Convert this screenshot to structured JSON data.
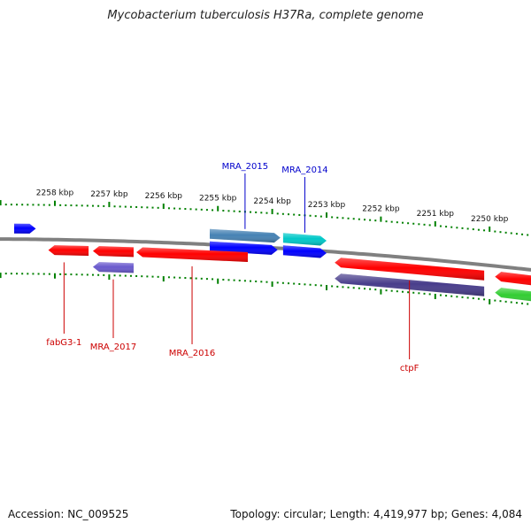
{
  "title": "Mycobacterium tuberculosis H37Ra, complete genome",
  "footer": {
    "accession": "Accession: NC_009525",
    "summary": "Topology: circular; Length: 4,419,977 bp; Genes: 4,084"
  },
  "scale_unit": "kbp",
  "ticks": [
    {
      "kbp": 2258,
      "label": "2258 kbp"
    },
    {
      "kbp": 2257,
      "label": "2257 kbp"
    },
    {
      "kbp": 2256,
      "label": "2256 kbp"
    },
    {
      "kbp": 2255,
      "label": "2255 kbp"
    },
    {
      "kbp": 2254,
      "label": "2254 kbp"
    },
    {
      "kbp": 2253,
      "label": "2253 kbp"
    },
    {
      "kbp": 2252,
      "label": "2252 kbp"
    },
    {
      "kbp": 2251,
      "label": "2251 kbp"
    },
    {
      "kbp": 2250,
      "label": "2250 kbp"
    }
  ],
  "features": [
    {
      "label": "",
      "strand": "+",
      "row": "outer",
      "color": "#0000ff",
      "start_kbp": 2258.75,
      "end_kbp": 2258.35
    },
    {
      "label": "MRA_2015",
      "strand": "+",
      "row": "outer",
      "color": "#4682b4",
      "start_kbp": 2255.15,
      "end_kbp": 2253.85
    },
    {
      "label": "",
      "strand": "+",
      "row": "inner",
      "color": "#0000ff",
      "start_kbp": 2255.15,
      "end_kbp": 2253.9
    },
    {
      "label": "MRA_2014",
      "strand": "+",
      "row": "outer",
      "color": "#00c8c8",
      "start_kbp": 2253.8,
      "end_kbp": 2253.0
    },
    {
      "label": "",
      "strand": "+",
      "row": "inner",
      "color": "#0000ff",
      "start_kbp": 2253.8,
      "end_kbp": 2253.0
    },
    {
      "label": "fabG3-1",
      "strand": "-",
      "row": "outer",
      "color": "#ff0000",
      "start_kbp": 2258.12,
      "end_kbp": 2257.38
    },
    {
      "label": "",
      "strand": "-",
      "row": "outer",
      "color": "#ff0000",
      "start_kbp": 2257.3,
      "end_kbp": 2256.55
    },
    {
      "label": "MRA_2017",
      "strand": "-",
      "row": "inner",
      "color": "#6a5acd",
      "start_kbp": 2257.3,
      "end_kbp": 2256.55
    },
    {
      "label": "MRA_2016",
      "strand": "-",
      "row": "outer",
      "color": "#ff0000",
      "start_kbp": 2256.5,
      "end_kbp": 2254.45
    },
    {
      "label": "ctpF",
      "strand": "-",
      "row": "outer",
      "color": "#ff0000",
      "start_kbp": 2252.85,
      "end_kbp": 2250.1
    },
    {
      "label": "",
      "strand": "-",
      "row": "inner",
      "color": "#483d8b",
      "start_kbp": 2252.85,
      "end_kbp": 2250.1
    },
    {
      "label": "",
      "strand": "-",
      "row": "outer",
      "color": "#ff0000",
      "start_kbp": 2249.9,
      "end_kbp": 2248.8
    },
    {
      "label": "",
      "strand": "-",
      "row": "inner",
      "color": "#32cd32",
      "start_kbp": 2249.9,
      "end_kbp": 2248.8
    }
  ],
  "colors": {
    "backbone": "#808080",
    "tick": "#008000",
    "plus_label": "#0000cc",
    "minus_label": "#cc0000"
  }
}
